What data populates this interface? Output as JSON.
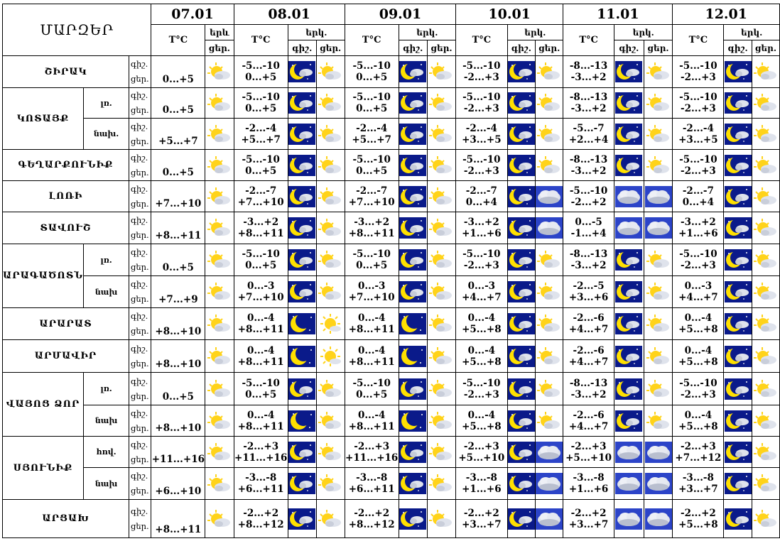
{
  "title": "ՄԱՐԶԵՐ",
  "headers": {
    "temp": "T°C",
    "sky": "երկ.",
    "sky_short": "երև",
    "night": "գիշ.",
    "day": "ցեր."
  },
  "dates": [
    "07.01",
    "08.01",
    "09.01",
    "10.01",
    "11.01",
    "12.01"
  ],
  "row_labels": {
    "night": "գիշ.",
    "day": "ցեր."
  },
  "colors": {
    "night_sky": "#0a1a8a",
    "moon": "#ffe000",
    "sun": "#ffd31a",
    "cloud": "#dfe3ec"
  },
  "rows": [
    {
      "region": "ՇԻՐԱԿ",
      "sub": "",
      "d1_day": "0...+5",
      "cells": [
        {
          "n": "-5...-10",
          "d": "0...+5",
          "icons": [
            "moon-cloud-icon",
            "sun-cloud-icon"
          ]
        },
        {
          "n": "-5...-10",
          "d": "0...+5",
          "icons": [
            "moon-cloud-icon",
            "sun-cloud-icon"
          ]
        },
        {
          "n": "-5...-10",
          "d": "-2...+3",
          "icons": [
            "moon-cloud-icon",
            "sun-cloud-icon"
          ]
        },
        {
          "n": "-8...-13",
          "d": "-3...+2",
          "icons": [
            "moon-cloud-icon",
            "sun-cloud-icon"
          ]
        },
        {
          "n": "-5...-10",
          "d": "-2...+3",
          "icons": [
            "moon-cloud-icon",
            "sun-cloud-icon"
          ]
        }
      ]
    },
    {
      "region": "ԿՈՏԱՅՔ",
      "sub": "լռ.",
      "d1_day": "0...+5",
      "cells": [
        {
          "n": "-5...-10",
          "d": "0...+5",
          "icons": [
            "moon-cloud-icon",
            "sun-cloud-icon"
          ]
        },
        {
          "n": "-5...-10",
          "d": "0...+5",
          "icons": [
            "moon-cloud-icon",
            "sun-cloud-icon"
          ]
        },
        {
          "n": "-5...-10",
          "d": "-2...+3",
          "icons": [
            "moon-cloud-icon",
            "sun-cloud-icon"
          ]
        },
        {
          "n": "-8...-13",
          "d": "-3...+2",
          "icons": [
            "moon-cloud-icon",
            "sun-cloud-icon"
          ]
        },
        {
          "n": "-5...-10",
          "d": "-2...+3",
          "icons": [
            "moon-cloud-icon",
            "sun-cloud-icon"
          ]
        }
      ]
    },
    {
      "region": "",
      "sub": "նախ.",
      "d1_day": "+5...+7",
      "cells": [
        {
          "n": "-2...-4",
          "d": "+5...+7",
          "icons": [
            "moon-cloud-icon",
            "sun-cloud-icon"
          ]
        },
        {
          "n": "-2...-4",
          "d": "+5...+7",
          "icons": [
            "moon-cloud-icon",
            "sun-cloud-icon"
          ]
        },
        {
          "n": "-2...-4",
          "d": "+3...+5",
          "icons": [
            "moon-cloud-icon",
            "sun-cloud-icon"
          ]
        },
        {
          "n": "-5...-7",
          "d": "+2...+4",
          "icons": [
            "moon-cloud-icon",
            "sun-cloud-icon"
          ]
        },
        {
          "n": "-2...-4",
          "d": "+3...+5",
          "icons": [
            "moon-cloud-icon",
            "sun-cloud-icon"
          ]
        }
      ]
    },
    {
      "region": "ԳԵՂԱՐՔՈՒՆԻՔ",
      "sub": "",
      "d1_day": "0...+5",
      "cells": [
        {
          "n": "-5...-10",
          "d": "0...+5",
          "icons": [
            "moon-cloud-icon",
            "sun-cloud-icon"
          ]
        },
        {
          "n": "-5...-10",
          "d": "0...+5",
          "icons": [
            "moon-cloud-icon",
            "sun-cloud-icon"
          ]
        },
        {
          "n": "-5...-10",
          "d": "-2...+3",
          "icons": [
            "moon-cloud-icon",
            "sun-cloud-icon"
          ]
        },
        {
          "n": "-8...-13",
          "d": "-3...+2",
          "icons": [
            "moon-cloud-icon",
            "sun-cloud-icon"
          ]
        },
        {
          "n": "-5...-10",
          "d": "-2...+3",
          "icons": [
            "moon-cloud-icon",
            "sun-cloud-icon"
          ]
        }
      ]
    },
    {
      "region": "ԼՈՌԻ",
      "sub": "",
      "d1_day": "+7...+10",
      "cells": [
        {
          "n": "-2...-7",
          "d": "+7...+10",
          "icons": [
            "moon-cloud-icon",
            "sun-cloud-icon"
          ]
        },
        {
          "n": "-2...-7",
          "d": "+7...+10",
          "icons": [
            "moon-cloud-icon",
            "sun-cloud-icon"
          ]
        },
        {
          "n": "-2...-7",
          "d": "0...+4",
          "icons": [
            "moon-cloud-icon",
            "cloud-icon"
          ]
        },
        {
          "n": "-5...-10",
          "d": "-2...+2",
          "icons": [
            "cloud-icon",
            "cloud-icon"
          ]
        },
        {
          "n": "-2...-7",
          "d": "0...+4",
          "icons": [
            "moon-cloud-icon",
            "sun-cloud-icon"
          ]
        }
      ]
    },
    {
      "region": "ՏԱՎՈՒՇ",
      "sub": "",
      "d1_day": "+8...+11",
      "cells": [
        {
          "n": "-3...+2",
          "d": "+8...+11",
          "icons": [
            "moon-cloud-icon",
            "sun-cloud-icon"
          ]
        },
        {
          "n": "-3...+2",
          "d": "+8...+11",
          "icons": [
            "moon-cloud-icon",
            "sun-cloud-icon"
          ]
        },
        {
          "n": "-3...+2",
          "d": "+1...+6",
          "icons": [
            "moon-cloud-icon",
            "cloud-icon"
          ]
        },
        {
          "n": "0...-5",
          "d": "-1...+4",
          "icons": [
            "cloud-icon",
            "cloud-icon"
          ]
        },
        {
          "n": "-3...+2",
          "d": "+1...+6",
          "icons": [
            "moon-cloud-icon",
            "sun-cloud-icon"
          ]
        }
      ]
    },
    {
      "region": "ԱՐԱԳԱԾՈՏՆ",
      "sub": "լռ.",
      "d1_day": "0...+5",
      "cells": [
        {
          "n": "-5...-10",
          "d": "0...+5",
          "icons": [
            "moon-cloud-icon",
            "sun-cloud-icon"
          ]
        },
        {
          "n": "-5...-10",
          "d": "0...+5",
          "icons": [
            "moon-cloud-icon",
            "sun-cloud-icon"
          ]
        },
        {
          "n": "-5...-10",
          "d": "-2...+3",
          "icons": [
            "moon-cloud-icon",
            "sun-cloud-icon"
          ]
        },
        {
          "n": "-8...-13",
          "d": "-3...+2",
          "icons": [
            "moon-cloud-icon",
            "sun-cloud-icon"
          ]
        },
        {
          "n": "-5...-10",
          "d": "-2...+3",
          "icons": [
            "moon-cloud-icon",
            "sun-cloud-icon"
          ]
        }
      ]
    },
    {
      "region": "",
      "sub": "նախ",
      "d1_day": "+7...+9",
      "cells": [
        {
          "n": "0...-3",
          "d": "+7...+10",
          "icons": [
            "moon-cloud-icon",
            "sun-cloud-icon"
          ]
        },
        {
          "n": "0...-3",
          "d": "+7...+10",
          "icons": [
            "moon-cloud-icon",
            "sun-cloud-icon"
          ]
        },
        {
          "n": "0...-3",
          "d": "+4...+7",
          "icons": [
            "moon-cloud-icon",
            "sun-cloud-icon"
          ]
        },
        {
          "n": "-2...-5",
          "d": "+3...+6",
          "icons": [
            "moon-cloud-icon",
            "sun-cloud-icon"
          ]
        },
        {
          "n": "0...-3",
          "d": "+4...+7",
          "icons": [
            "moon-cloud-icon",
            "sun-cloud-icon"
          ]
        }
      ]
    },
    {
      "region": "ԱՐԱՐԱՏ",
      "sub": "",
      "d1_day": "+8...+10",
      "cells": [
        {
          "n": "0...-4",
          "d": "+8...+11",
          "icons": [
            "moon-icon",
            "sun-icon"
          ]
        },
        {
          "n": "0...-4",
          "d": "+8...+11",
          "icons": [
            "moon-icon",
            "sun-cloud-icon"
          ]
        },
        {
          "n": "0...-4",
          "d": "+5...+8",
          "icons": [
            "moon-cloud-icon",
            "sun-cloud-icon"
          ]
        },
        {
          "n": "-2...-6",
          "d": "+4...+7",
          "icons": [
            "moon-cloud-icon",
            "sun-cloud-icon"
          ]
        },
        {
          "n": "0...-4",
          "d": "+5...+8",
          "icons": [
            "moon-cloud-icon",
            "sun-cloud-icon"
          ]
        }
      ]
    },
    {
      "region": "ԱՐՄԱՎԻՐ",
      "sub": "",
      "d1_day": "+8...+10",
      "cells": [
        {
          "n": "0...-4",
          "d": "+8...+11",
          "icons": [
            "moon-icon",
            "sun-icon"
          ]
        },
        {
          "n": "0...-4",
          "d": "+8...+11",
          "icons": [
            "moon-icon",
            "sun-cloud-icon"
          ]
        },
        {
          "n": "0...-4",
          "d": "+5...+8",
          "icons": [
            "moon-cloud-icon",
            "sun-cloud-icon"
          ]
        },
        {
          "n": "-2...-6",
          "d": "+4...+7",
          "icons": [
            "moon-cloud-icon",
            "sun-cloud-icon"
          ]
        },
        {
          "n": "0...-4",
          "d": "+5...+8",
          "icons": [
            "moon-cloud-icon",
            "sun-cloud-icon"
          ]
        }
      ]
    },
    {
      "region": "ՎԱՅՈՑ ՁՈՐ",
      "sub": "լռ.",
      "d1_day": "0...+5",
      "cells": [
        {
          "n": "-5...-10",
          "d": "0...+5",
          "icons": [
            "moon-cloud-icon",
            "sun-cloud-icon"
          ]
        },
        {
          "n": "-5...-10",
          "d": "0...+5",
          "icons": [
            "moon-cloud-icon",
            "sun-cloud-icon"
          ]
        },
        {
          "n": "-5...-10",
          "d": "-2...+3",
          "icons": [
            "moon-cloud-icon",
            "sun-cloud-icon"
          ]
        },
        {
          "n": "-8...-13",
          "d": "-3...+2",
          "icons": [
            "moon-cloud-icon",
            "sun-cloud-icon"
          ]
        },
        {
          "n": "-5...-10",
          "d": "-2...+3",
          "icons": [
            "moon-cloud-icon",
            "sun-cloud-icon"
          ]
        }
      ]
    },
    {
      "region": "",
      "sub": "նախ",
      "d1_day": "+8...+10",
      "cells": [
        {
          "n": "0...-4",
          "d": "+8...+11",
          "icons": [
            "moon-icon",
            "sun-cloud-icon"
          ]
        },
        {
          "n": "0...-4",
          "d": "+8...+11",
          "icons": [
            "moon-icon",
            "sun-cloud-icon"
          ]
        },
        {
          "n": "0...-4",
          "d": "+5...+8",
          "icons": [
            "moon-cloud-icon",
            "sun-cloud-icon"
          ]
        },
        {
          "n": "-2...-6",
          "d": "+4...+7",
          "icons": [
            "moon-cloud-icon",
            "sun-cloud-icon"
          ]
        },
        {
          "n": "0...-4",
          "d": "+5...+8",
          "icons": [
            "moon-cloud-icon",
            "sun-cloud-icon"
          ]
        }
      ]
    },
    {
      "region": "ՍՅՈՒՆԻՔ",
      "sub": "հով.",
      "d1_day": "+11...+16",
      "cells": [
        {
          "n": "-2...+3",
          "d": "+11...+16",
          "icons": [
            "moon-cloud-icon",
            "sun-cloud-icon"
          ]
        },
        {
          "n": "-2...+3",
          "d": "+11...+16",
          "icons": [
            "moon-cloud-icon",
            "sun-cloud-icon"
          ]
        },
        {
          "n": "-2...+3",
          "d": "+5...+10",
          "icons": [
            "moon-cloud-icon",
            "cloud-icon"
          ]
        },
        {
          "n": "-2...+3",
          "d": "+5...+10",
          "icons": [
            "cloud-icon",
            "cloud-icon"
          ]
        },
        {
          "n": "-2...+3",
          "d": "+7...+12",
          "icons": [
            "moon-cloud-icon",
            "sun-cloud-icon"
          ]
        }
      ]
    },
    {
      "region": "",
      "sub": "նախ",
      "d1_day": "+6...+10",
      "cells": [
        {
          "n": "-3...-8",
          "d": "+6...+11",
          "icons": [
            "moon-cloud-icon",
            "sun-cloud-icon"
          ]
        },
        {
          "n": "-3...-8",
          "d": "+6...+11",
          "icons": [
            "moon-cloud-icon",
            "sun-cloud-icon"
          ]
        },
        {
          "n": "-3...-8",
          "d": "+1...+6",
          "icons": [
            "moon-cloud-icon",
            "cloud-icon"
          ]
        },
        {
          "n": "-3...-8",
          "d": "+1...+6",
          "icons": [
            "cloud-icon",
            "cloud-icon"
          ]
        },
        {
          "n": "-3...-8",
          "d": "+3...+7",
          "icons": [
            "moon-cloud-icon",
            "sun-cloud-icon"
          ]
        }
      ]
    },
    {
      "region": "ԱՐՑԱԽ",
      "sub": "",
      "d1_day": "+8...+11",
      "cells": [
        {
          "n": "-2...+2",
          "d": "+8...+12",
          "icons": [
            "moon-cloud-icon",
            "sun-cloud-icon"
          ]
        },
        {
          "n": "-2...+2",
          "d": "+8...+12",
          "icons": [
            "moon-cloud-icon",
            "sun-cloud-icon"
          ]
        },
        {
          "n": "-2...+2",
          "d": "+3...+7",
          "icons": [
            "moon-cloud-icon",
            "cloud-icon"
          ]
        },
        {
          "n": "-2...+2",
          "d": "+3...+7",
          "icons": [
            "cloud-icon",
            "cloud-icon"
          ]
        },
        {
          "n": "-2...+2",
          "d": "+5...+8",
          "icons": [
            "moon-cloud-icon",
            "sun-cloud-icon"
          ]
        }
      ]
    }
  ]
}
